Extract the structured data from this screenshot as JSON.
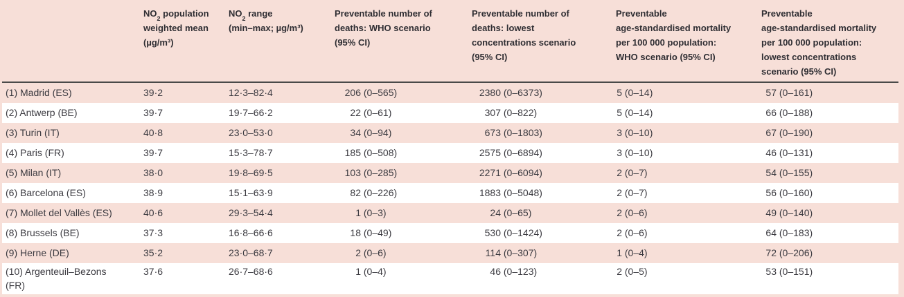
{
  "colors": {
    "row_pink": "#f7dfd8",
    "row_white": "#ffffff",
    "header_rule": "#4a4a49",
    "body_text": "#3b3a40",
    "header_text": "#2f2e33"
  },
  "table": {
    "header": {
      "city": "",
      "no2_mean": {
        "pre": "NO",
        "sub": "2",
        "post": " population\nweighted mean\n(µg/m³)"
      },
      "no2_range": {
        "pre": "NO",
        "sub": "2",
        "post": " range\n(min–max; µg/m³)"
      },
      "deaths_who": "Preventable number of\ndeaths: WHO scenario\n(95% CI)",
      "deaths_lowest": "Preventable number of\ndeaths: lowest\nconcentrations scenario\n(95% CI)",
      "rate_who": "Preventable\nage-standardised mortality\nper 100 000 population:\nWHO scenario (95% CI)",
      "rate_lowest": "Preventable\nage-standardised mortality\nper 100 000 population:\nlowest concentrations\nscenario (95% CI)"
    },
    "rows": [
      {
        "city": "(1) Madrid (ES)",
        "no2_mean": "39·2",
        "no2_range": "12·3–82·4",
        "deaths_who": {
          "n": "206",
          "ci": "(0–565)"
        },
        "deaths_lowest": {
          "n": "2380",
          "ci": "(0–6373)"
        },
        "rate_who": {
          "n": "5",
          "ci": "(0–14)"
        },
        "rate_lowest": {
          "n": "57",
          "ci": "(0–161)"
        }
      },
      {
        "city": "(2) Antwerp (BE)",
        "no2_mean": "39·7",
        "no2_range": "19·7–66·2",
        "deaths_who": {
          "n": "22",
          "ci": "(0–61)"
        },
        "deaths_lowest": {
          "n": "307",
          "ci": "(0–822)"
        },
        "rate_who": {
          "n": "5",
          "ci": "(0–14)"
        },
        "rate_lowest": {
          "n": "66",
          "ci": "(0–188)"
        }
      },
      {
        "city": "(3) Turin (IT)",
        "no2_mean": "40·8",
        "no2_range": "23·0–53·0",
        "deaths_who": {
          "n": "34",
          "ci": "(0–94)"
        },
        "deaths_lowest": {
          "n": "673",
          "ci": "(0–1803)"
        },
        "rate_who": {
          "n": "3",
          "ci": "(0–10)"
        },
        "rate_lowest": {
          "n": "67",
          "ci": "(0–190)"
        }
      },
      {
        "city": "(4) Paris (FR)",
        "no2_mean": "39·7",
        "no2_range": "15·3–78·7",
        "deaths_who": {
          "n": "185",
          "ci": "(0–508)"
        },
        "deaths_lowest": {
          "n": "2575",
          "ci": "(0–6894)"
        },
        "rate_who": {
          "n": "3",
          "ci": "(0–10)"
        },
        "rate_lowest": {
          "n": "46",
          "ci": "(0–131)"
        }
      },
      {
        "city": "(5) Milan (IT)",
        "no2_mean": "38·0",
        "no2_range": "19·8–69·5",
        "deaths_who": {
          "n": "103",
          "ci": "(0–285)"
        },
        "deaths_lowest": {
          "n": "2271",
          "ci": "(0–6094)"
        },
        "rate_who": {
          "n": "2",
          "ci": "(0–7)"
        },
        "rate_lowest": {
          "n": "54",
          "ci": "(0–155)"
        }
      },
      {
        "city": "(6) Barcelona (ES)",
        "no2_mean": "38·9",
        "no2_range": "15·1–63·9",
        "deaths_who": {
          "n": "82",
          "ci": "(0–226)"
        },
        "deaths_lowest": {
          "n": "1883",
          "ci": "(0–5048)"
        },
        "rate_who": {
          "n": "2",
          "ci": "(0–7)"
        },
        "rate_lowest": {
          "n": "56",
          "ci": "(0–160)"
        }
      },
      {
        "city": "(7) Mollet del Vallès (ES)",
        "no2_mean": "40·6",
        "no2_range": "29·3–54·4",
        "deaths_who": {
          "n": "1",
          "ci": "(0–3)"
        },
        "deaths_lowest": {
          "n": "24",
          "ci": "(0–65)"
        },
        "rate_who": {
          "n": "2",
          "ci": "(0–6)"
        },
        "rate_lowest": {
          "n": "49",
          "ci": "(0–140)"
        }
      },
      {
        "city": "(8) Brussels (BE)",
        "no2_mean": "37·3",
        "no2_range": "16·8–66·6",
        "deaths_who": {
          "n": "18",
          "ci": "(0–49)"
        },
        "deaths_lowest": {
          "n": "530",
          "ci": "(0–1424)"
        },
        "rate_who": {
          "n": "2",
          "ci": "(0–6)"
        },
        "rate_lowest": {
          "n": "64",
          "ci": "(0–183)"
        }
      },
      {
        "city": "(9) Herne (DE)",
        "no2_mean": "35·2",
        "no2_range": "23·0–68·7",
        "deaths_who": {
          "n": "2",
          "ci": "(0–6)"
        },
        "deaths_lowest": {
          "n": "114",
          "ci": "(0–307)"
        },
        "rate_who": {
          "n": "1",
          "ci": "(0–4)"
        },
        "rate_lowest": {
          "n": "72",
          "ci": "(0–206)"
        }
      },
      {
        "city": "(10) Argenteuil–Bezons\n(FR)",
        "no2_mean": "37·6",
        "no2_range": "26·7–68·6",
        "deaths_who": {
          "n": "1",
          "ci": "(0–4)"
        },
        "deaths_lowest": {
          "n": "46",
          "ci": "(0–123)"
        },
        "rate_who": {
          "n": "2",
          "ci": "(0–5)"
        },
        "rate_lowest": {
          "n": "53",
          "ci": "(0–151)"
        }
      }
    ]
  }
}
